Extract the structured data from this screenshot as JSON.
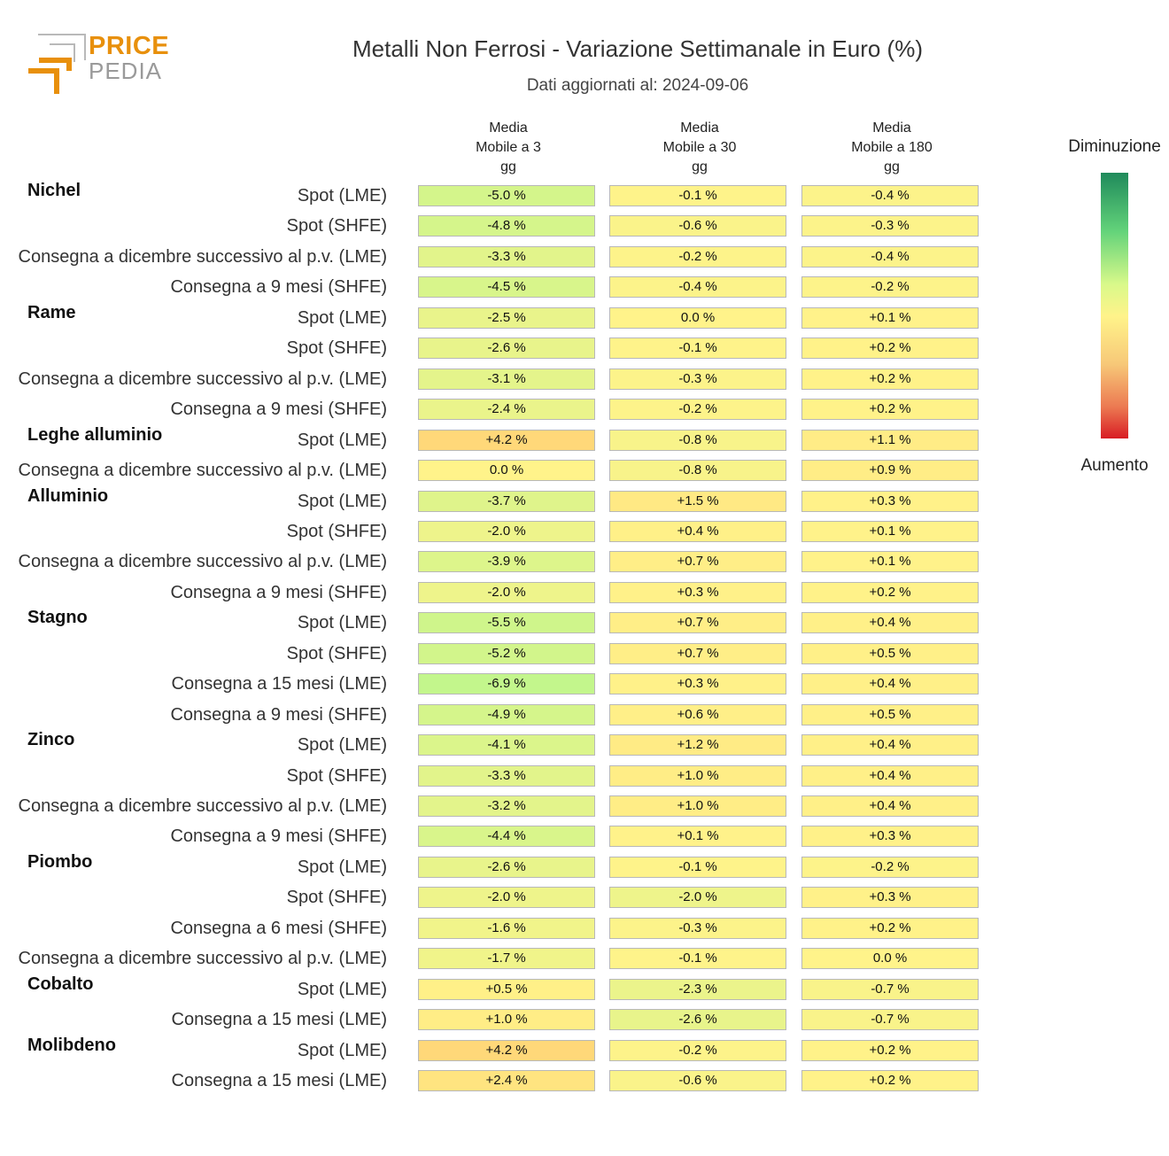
{
  "header": {
    "title": "Metalli Non Ferrosi - Variazione Settimanale in Euro (%)",
    "subtitle": "Dati aggiornati al: 2024-09-06",
    "logo_top": "PRICE",
    "logo_bottom": "PEDIA"
  },
  "legend": {
    "top_label": "Diminuzione",
    "bottom_label": "Aumento"
  },
  "chart_data": {
    "type": "heatmap",
    "columns": [
      {
        "lines": [
          "Media",
          "Mobile a 3",
          "gg"
        ]
      },
      {
        "lines": [
          "Media",
          "Mobile a 30",
          "gg"
        ]
      },
      {
        "lines": [
          "Media",
          "Mobile a 180",
          "gg"
        ]
      }
    ],
    "color_scale": {
      "negative": "#1f8a5b",
      "mid": "#fff38a",
      "positive": "#d81d24"
    },
    "value_suffix": " %",
    "groups": [
      {
        "name": "Nichel",
        "rows": [
          {
            "label": "Spot (LME)",
            "values": [
              -5.0,
              -0.1,
              -0.4
            ]
          },
          {
            "label": "Spot (SHFE)",
            "values": [
              -4.8,
              -0.6,
              -0.3
            ]
          },
          {
            "label": "Consegna a dicembre successivo al p.v. (LME)",
            "values": [
              -3.3,
              -0.2,
              -0.4
            ]
          },
          {
            "label": "Consegna a 9 mesi (SHFE)",
            "values": [
              -4.5,
              -0.4,
              -0.2
            ]
          }
        ]
      },
      {
        "name": "Rame",
        "rows": [
          {
            "label": "Spot (LME)",
            "values": [
              -2.5,
              0.0,
              0.1
            ]
          },
          {
            "label": "Spot (SHFE)",
            "values": [
              -2.6,
              -0.1,
              0.2
            ]
          },
          {
            "label": "Consegna a dicembre successivo al p.v. (LME)",
            "values": [
              -3.1,
              -0.3,
              0.2
            ]
          },
          {
            "label": "Consegna a 9 mesi (SHFE)",
            "values": [
              -2.4,
              -0.2,
              0.2
            ]
          }
        ]
      },
      {
        "name": "Leghe alluminio",
        "rows": [
          {
            "label": "Spot (LME)",
            "values": [
              4.2,
              -0.8,
              1.1
            ]
          },
          {
            "label": "Consegna a dicembre successivo al p.v. (LME)",
            "values": [
              0.0,
              -0.8,
              0.9
            ]
          }
        ]
      },
      {
        "name": "Alluminio",
        "rows": [
          {
            "label": "Spot (LME)",
            "values": [
              -3.7,
              1.5,
              0.3
            ]
          },
          {
            "label": "Spot (SHFE)",
            "values": [
              -2.0,
              0.4,
              0.1
            ]
          },
          {
            "label": "Consegna a dicembre successivo al p.v. (LME)",
            "values": [
              -3.9,
              0.7,
              0.1
            ]
          },
          {
            "label": "Consegna a 9 mesi (SHFE)",
            "values": [
              -2.0,
              0.3,
              0.2
            ]
          }
        ]
      },
      {
        "name": "Stagno",
        "rows": [
          {
            "label": "Spot (LME)",
            "values": [
              -5.5,
              0.7,
              0.4
            ]
          },
          {
            "label": "Spot (SHFE)",
            "values": [
              -5.2,
              0.7,
              0.5
            ]
          },
          {
            "label": "Consegna a 15 mesi (LME)",
            "values": [
              -6.9,
              0.3,
              0.4
            ]
          },
          {
            "label": "Consegna a 9 mesi (SHFE)",
            "values": [
              -4.9,
              0.6,
              0.5
            ]
          }
        ]
      },
      {
        "name": "Zinco",
        "rows": [
          {
            "label": "Spot (LME)",
            "values": [
              -4.1,
              1.2,
              0.4
            ]
          },
          {
            "label": "Spot (SHFE)",
            "values": [
              -3.3,
              1.0,
              0.4
            ]
          },
          {
            "label": "Consegna a dicembre successivo al p.v. (LME)",
            "values": [
              -3.2,
              1.0,
              0.4
            ]
          },
          {
            "label": "Consegna a 9 mesi (SHFE)",
            "values": [
              -4.4,
              0.1,
              0.3
            ]
          }
        ]
      },
      {
        "name": "Piombo",
        "rows": [
          {
            "label": "Spot (LME)",
            "values": [
              -2.6,
              -0.1,
              -0.2
            ]
          },
          {
            "label": "Spot (SHFE)",
            "values": [
              -2.0,
              -2.0,
              0.3
            ]
          },
          {
            "label": "Consegna a 6 mesi (SHFE)",
            "values": [
              -1.6,
              -0.3,
              0.2
            ]
          },
          {
            "label": "Consegna a dicembre successivo al p.v. (LME)",
            "values": [
              -1.7,
              -0.1,
              0.0
            ]
          }
        ]
      },
      {
        "name": "Cobalto",
        "rows": [
          {
            "label": "Spot (LME)",
            "values": [
              0.5,
              -2.3,
              -0.7
            ]
          },
          {
            "label": "Consegna a 15 mesi (LME)",
            "values": [
              1.0,
              -2.6,
              -0.7
            ]
          }
        ]
      },
      {
        "name": "Molibdeno",
        "rows": [
          {
            "label": "Spot (LME)",
            "values": [
              4.2,
              -0.2,
              0.2
            ]
          },
          {
            "label": "Consegna a 15 mesi (LME)",
            "values": [
              2.4,
              -0.6,
              0.2
            ]
          }
        ]
      }
    ]
  }
}
